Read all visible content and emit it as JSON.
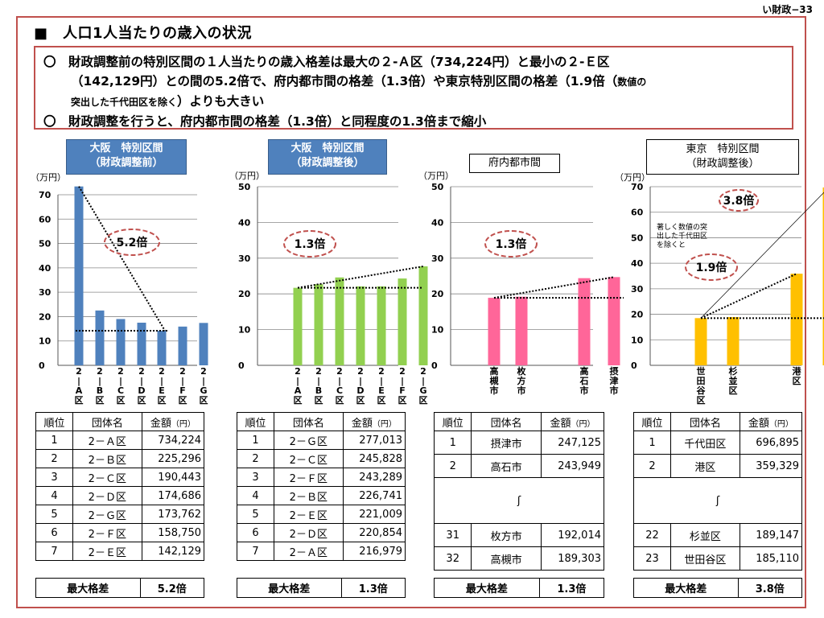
{
  "page_number": "い財政−33",
  "title": "■　人口1人当たりの歳入の状況",
  "summary": {
    "line1": "〇　財政調整前の特別区間の１人当たりの歳入格差は最大の２-Ａ区（734,224円）と最小の２-Ｅ区",
    "line2a": "（142,129円）との間の5.2倍で、府内都市間の格差（1.3倍）や東京特別区間の格差（1.9倍（",
    "line2b": "数値の",
    "line3a": "突出した千代田区を除く",
    "line3b": "）よりも大きい",
    "line4": "〇　財政調整を行うと、府内都市間の格差（1.3倍）と同程度の1.3倍まで縮小"
  },
  "charts": [
    {
      "panel_title_line1": "大阪　特別区間",
      "panel_title_line2": "（財政調整前）",
      "panel_title_style": "blue",
      "unit_label": "（万円）",
      "ratio_label": "5.2倍",
      "table_header": {
        "rank": "順位",
        "name": "団体名",
        "amount": "金額",
        "amount_unit": "（円）"
      },
      "rows": [
        {
          "rank": "1",
          "name": "2－Ａ区",
          "amount": "734,224"
        },
        {
          "rank": "2",
          "name": "2－Ｂ区",
          "amount": "225,296"
        },
        {
          "rank": "3",
          "name": "2－Ｃ区",
          "amount": "190,443"
        },
        {
          "rank": "4",
          "name": "2－Ｄ区",
          "amount": "174,686"
        },
        {
          "rank": "5",
          "name": "2－Ｇ区",
          "amount": "173,762"
        },
        {
          "rank": "6",
          "name": "2－Ｆ区",
          "amount": "158,750"
        },
        {
          "rank": "7",
          "name": "2－Ｅ区",
          "amount": "142,129"
        }
      ],
      "gap_label": "最大格差",
      "gap_value": "5.2倍"
    },
    {
      "panel_title_line1": "大阪　特別区間",
      "panel_title_line2": "（財政調整後）",
      "panel_title_style": "blue",
      "unit_label": "（万円）",
      "ratio_label": "1.3倍",
      "table_header": {
        "rank": "順位",
        "name": "団体名",
        "amount": "金額",
        "amount_unit": "（円）"
      },
      "rows": [
        {
          "rank": "1",
          "name": "2－Ｇ区",
          "amount": "277,013"
        },
        {
          "rank": "2",
          "name": "2－Ｃ区",
          "amount": "245,828"
        },
        {
          "rank": "3",
          "name": "2－Ｆ区",
          "amount": "243,289"
        },
        {
          "rank": "4",
          "name": "2－Ｂ区",
          "amount": "226,741"
        },
        {
          "rank": "5",
          "name": "2－Ｅ区",
          "amount": "221,009"
        },
        {
          "rank": "6",
          "name": "2－Ｄ区",
          "amount": "220,854"
        },
        {
          "rank": "7",
          "name": "2－Ａ区",
          "amount": "216,979"
        }
      ],
      "gap_label": "最大格差",
      "gap_value": "1.3倍"
    },
    {
      "panel_title_line1": "府内都市間",
      "panel_title_line2": "",
      "panel_title_style": "plain",
      "unit_label": "（万円）",
      "ratio_label": "1.3倍",
      "table_header": {
        "rank": "順位",
        "name": "団体名",
        "amount": "金額",
        "amount_unit": "（円）"
      },
      "rows": [
        {
          "rank": "1",
          "name": "摂津市",
          "amount": "247,125"
        },
        {
          "rank": "2",
          "name": "高石市",
          "amount": "243,949"
        },
        {
          "rank": "",
          "name": "ʃ",
          "amount": ""
        },
        {
          "rank": "31",
          "name": "枚方市",
          "amount": "192,014"
        },
        {
          "rank": "32",
          "name": "高槻市",
          "amount": "189,303"
        }
      ],
      "gap_label": "最大格差",
      "gap_value": "1.3倍"
    },
    {
      "panel_title_line1": "東京　特別区間",
      "panel_title_line2": "（財政調整後）",
      "panel_title_style": "plain",
      "unit_label": "（万円）",
      "ratio_label": "1.9倍",
      "ratio_label_2": "3.8倍",
      "note": [
        "著しく数値の突",
        "出した千代田区",
        "を除くと"
      ],
      "table_header": {
        "rank": "順位",
        "name": "団体名",
        "amount": "金額",
        "amount_unit": "（円）"
      },
      "rows": [
        {
          "rank": "1",
          "name": "千代田区",
          "amount": "696,895"
        },
        {
          "rank": "2",
          "name": "港区",
          "amount": "359,329"
        },
        {
          "rank": "",
          "name": "ʃ",
          "amount": ""
        },
        {
          "rank": "22",
          "name": "杉並区",
          "amount": "189,147"
        },
        {
          "rank": "23",
          "name": "世田谷区",
          "amount": "185,110"
        }
      ],
      "gap_label": "最大格差",
      "gap_value": "3.8倍"
    }
  ],
  "chart_data": [
    {
      "type": "bar",
      "title": "大阪　特別区間（財政調整前）",
      "ylabel": "（万円）",
      "ylim": [
        0,
        70
      ],
      "yticks": [
        0,
        10,
        20,
        30,
        40,
        50,
        60,
        70
      ],
      "categories": [
        "2-A区",
        "2-B区",
        "2-C区",
        "2-D区",
        "2-E区",
        "2-F区",
        "2-G区"
      ],
      "values": [
        73.4,
        22.5,
        19.0,
        17.5,
        14.2,
        15.9,
        17.4
      ],
      "color": "#4f81bd",
      "grid": true
    },
    {
      "type": "bar",
      "title": "大阪　特別区間（財政調整後）",
      "ylabel": "（万円）",
      "ylim": [
        0,
        50
      ],
      "yticks": [
        0,
        10,
        20,
        30,
        40,
        50
      ],
      "categories": [
        "2-A区",
        "2-B区",
        "2-C区",
        "2-D区",
        "2-E区",
        "2-F区",
        "2-G区"
      ],
      "values": [
        21.7,
        22.7,
        24.6,
        22.1,
        22.1,
        24.3,
        27.7
      ],
      "color": "#92d050",
      "grid": true
    },
    {
      "type": "bar",
      "title": "府内都市間",
      "ylabel": "（万円）",
      "ylim": [
        0,
        50
      ],
      "yticks": [
        0,
        10,
        20,
        30,
        40,
        50
      ],
      "categories": [
        "高槻市",
        "枚方市",
        "",
        "高石市",
        "摂津市"
      ],
      "values": [
        18.9,
        19.2,
        null,
        24.4,
        24.7
      ],
      "color": "#ff6699",
      "grid": true
    },
    {
      "type": "bar",
      "title": "東京　特別区間（財政調整後）",
      "ylabel": "（万円）",
      "ylim": [
        0,
        70
      ],
      "yticks": [
        0,
        10,
        20,
        30,
        40,
        50,
        60,
        70
      ],
      "categories": [
        "世田谷区",
        "杉並区",
        "",
        "港区",
        "千代田区"
      ],
      "values": [
        18.5,
        18.9,
        null,
        35.9,
        69.7
      ],
      "color": "#ffc000",
      "grid": true
    }
  ]
}
